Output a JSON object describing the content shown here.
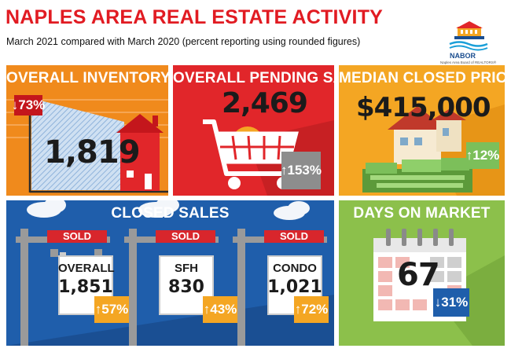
{
  "header": {
    "title": "NAPLES AREA REAL ESTATE ACTIVITY",
    "subtitle": "March 2021 compared with March 2020 (percent reporting using rounded figures)"
  },
  "logo": {
    "name": "NABOR",
    "tagline": "Naples Area Board of REALTORS®"
  },
  "inventory": {
    "title": "OVERALL INVENTORY",
    "value": "1,819",
    "change": "↓73%",
    "direction": "down"
  },
  "pending": {
    "title": "OVERALL PENDING SALES",
    "value": "2,469",
    "change": "↑153%",
    "direction": "up"
  },
  "median": {
    "title": "MEDIAN CLOSED PRICE",
    "value": "$415,000",
    "change": "↑12%",
    "direction": "up"
  },
  "closed": {
    "title": "CLOSED SALES",
    "signs": [
      {
        "sold": "SOLD",
        "label": "OVERALL",
        "value": "1,851",
        "change": "↑57%"
      },
      {
        "sold": "SOLD",
        "label": "SFH",
        "value": "830",
        "change": "↑43%"
      },
      {
        "sold": "SOLD",
        "label": "CONDO",
        "value": "1,021",
        "change": "↑72%"
      }
    ]
  },
  "dom": {
    "title": "DAYS ON MARKET",
    "value": "67",
    "change": "↓31%",
    "direction": "down"
  },
  "colors": {
    "title_red": "#e11b22",
    "orange": "#f08a1c",
    "red": "#e1262a",
    "gold": "#f4a623",
    "blue": "#1f5eab",
    "green": "#8cc04b"
  },
  "icons": [
    "house-icon",
    "shopping-cart-icon",
    "money-house-icon",
    "sold-sign-icon",
    "calendar-icon",
    "cloud-icon"
  ]
}
